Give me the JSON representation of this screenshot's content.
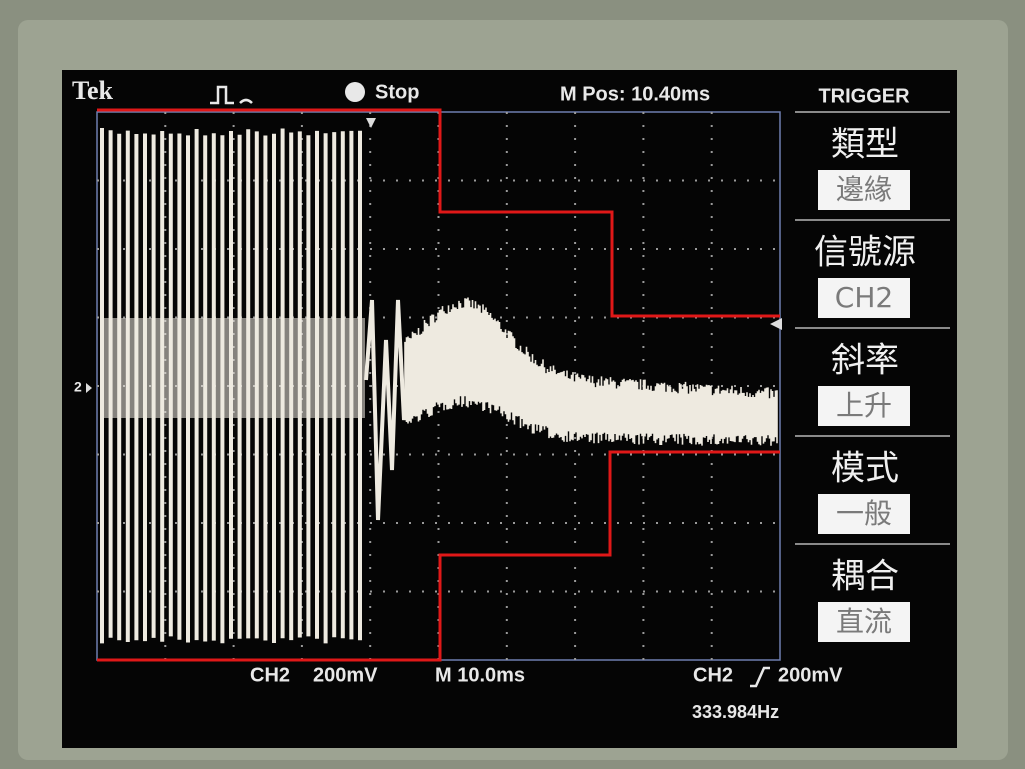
{
  "header": {
    "brand": "Tek",
    "status": "Stop",
    "position": "M Pos: 10.40ms"
  },
  "trigger_menu": {
    "title": "TRIGGER",
    "items": [
      {
        "label": "類型",
        "option": "邊緣"
      },
      {
        "label": "信號源",
        "option": "CH2"
      },
      {
        "label": "斜率",
        "option": "上升"
      },
      {
        "label": "模式",
        "option": "一般"
      },
      {
        "label": "耦合",
        "option": "直流"
      }
    ]
  },
  "channel_marker": "2",
  "footer": {
    "channel": "CH2",
    "scale": "200mV",
    "timebase": "M 10.0ms",
    "trigger_source": "CH2",
    "trigger_level": "200mV",
    "frequency": "333.984Hz"
  }
}
